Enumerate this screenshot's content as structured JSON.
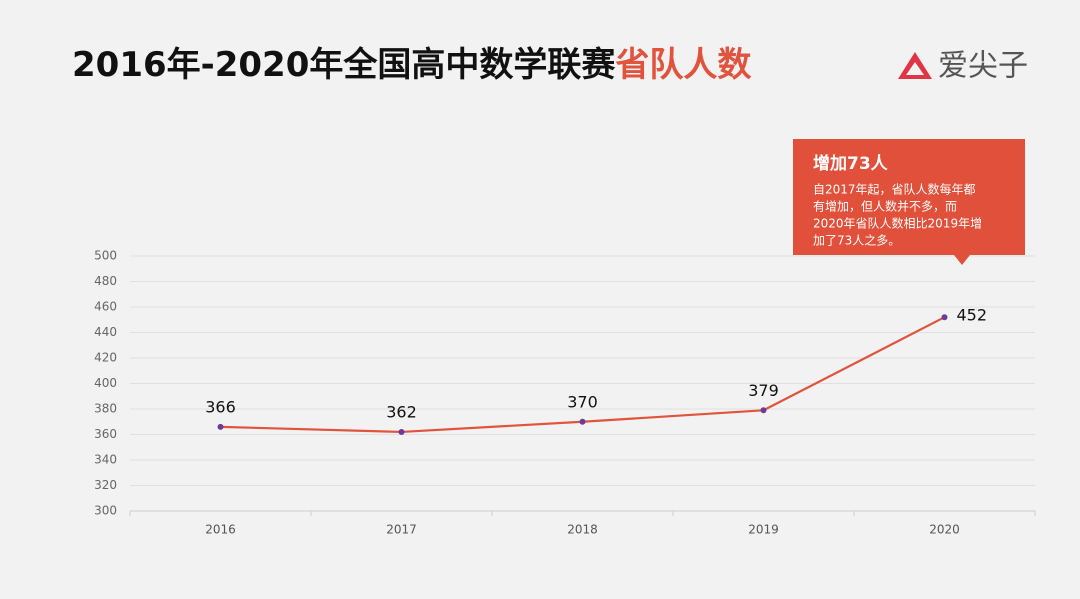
{
  "chart_data": {
    "type": "line",
    "title": [
      "2016年-2020年全国高中数学联赛",
      "省队人数"
    ],
    "logo": "爱尖子",
    "categories": [
      "2016",
      "2017",
      "2018",
      "2019",
      "2020"
    ],
    "values": [
      366,
      362,
      370,
      379,
      452
    ],
    "color": "#e0533d",
    "marker_color": "#6a3d9a",
    "ylim": [
      300,
      500
    ],
    "yticks": [
      300,
      320,
      340,
      360,
      380,
      400,
      420,
      440,
      460,
      480,
      500
    ],
    "grid": true,
    "annotation": {
      "title": "增加73人",
      "lines": [
        "自2017年起，省队人数每年都",
        "有增加，但人数并不多，而",
        "2020年省队人数相比2019年增",
        "加了73人之多。"
      ]
    }
  }
}
